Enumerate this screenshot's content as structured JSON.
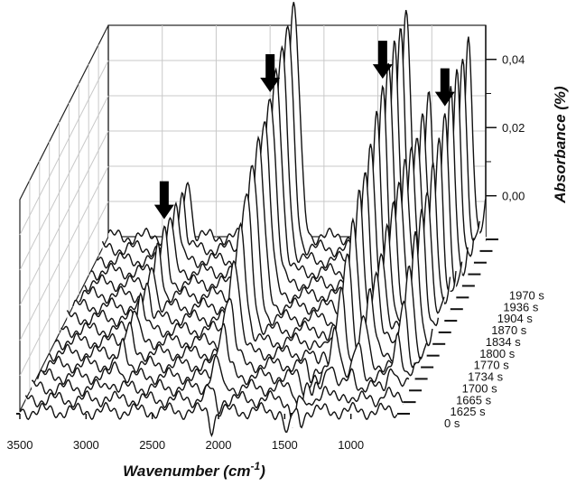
{
  "chart_data": {
    "type": "line",
    "style": "3d-waterfall",
    "xlabel": "Wavenumber (cm",
    "xlabel_superscript": "-1",
    "xlabel_close": ")",
    "ylabel": "Absorbance (%)",
    "x_ticks": [
      3500,
      3000,
      2500,
      2000,
      1500,
      1000
    ],
    "x_tick_labels": [
      "3500",
      "3000",
      "2500",
      "2000",
      "1500",
      "1000"
    ],
    "xlim": [
      3500,
      650
    ],
    "z_ticks": [
      0.0,
      0.02,
      0.04
    ],
    "z_tick_labels": [
      "0,00",
      "0,02",
      "0,04"
    ],
    "zlim": [
      -0.012,
      0.05
    ],
    "grid": true,
    "series_axis_labels": [
      "0 s",
      "1625 s",
      "1665 s",
      "1700 s",
      "1734 s",
      "1770 s",
      "1800 s",
      "1834 s",
      "1870 s",
      "1904 s",
      "1936 s",
      "1970 s"
    ],
    "arrow_markers_at_wavenumber": [
      2900,
      2100,
      1250,
      780
    ],
    "peaks": [
      {
        "center": 2900,
        "width": 35,
        "max": 0.012
      },
      {
        "center": 2100,
        "width": 60,
        "max": 0.045
      },
      {
        "center": 1250,
        "width": 45,
        "max": 0.046
      },
      {
        "center": 1080,
        "width": 40,
        "max": 0.028
      },
      {
        "center": 780,
        "width": 40,
        "max": 0.04
      },
      {
        "center": 600,
        "width": 45,
        "max": 0.022
      }
    ],
    "series": [
      {
        "time_s": 0,
        "scale": 0.0,
        "dip": 1.0
      },
      {
        "time_s": 1625,
        "scale": 0.05,
        "dip": 0.9
      },
      {
        "time_s": 1665,
        "scale": 0.14,
        "dip": 0.8
      },
      {
        "time_s": 1700,
        "scale": 0.26,
        "dip": 0.7
      },
      {
        "time_s": 1734,
        "scale": 0.38,
        "dip": 0.6
      },
      {
        "time_s": 1770,
        "scale": 0.5,
        "dip": 0.5
      },
      {
        "time_s": 1800,
        "scale": 0.6,
        "dip": 0.4
      },
      {
        "time_s": 1834,
        "scale": 0.7,
        "dip": 0.3
      },
      {
        "time_s": 1870,
        "scale": 0.78,
        "dip": 0.2
      },
      {
        "time_s": 1904,
        "scale": 0.86,
        "dip": 0.15
      },
      {
        "time_s": 1936,
        "scale": 0.93,
        "dip": 0.1
      },
      {
        "time_s": 1970,
        "scale": 1.0,
        "dip": 0.05
      },
      {
        "time_s": null,
        "scale": 1.05,
        "dip": 0.0
      },
      {
        "time_s": null,
        "scale": 1.1,
        "dip": 0.0
      },
      {
        "time_s": null,
        "scale": 1.15,
        "dip": 0.0
      },
      {
        "time_s": null,
        "scale": 1.2,
        "dip": 0.0
      }
    ]
  }
}
